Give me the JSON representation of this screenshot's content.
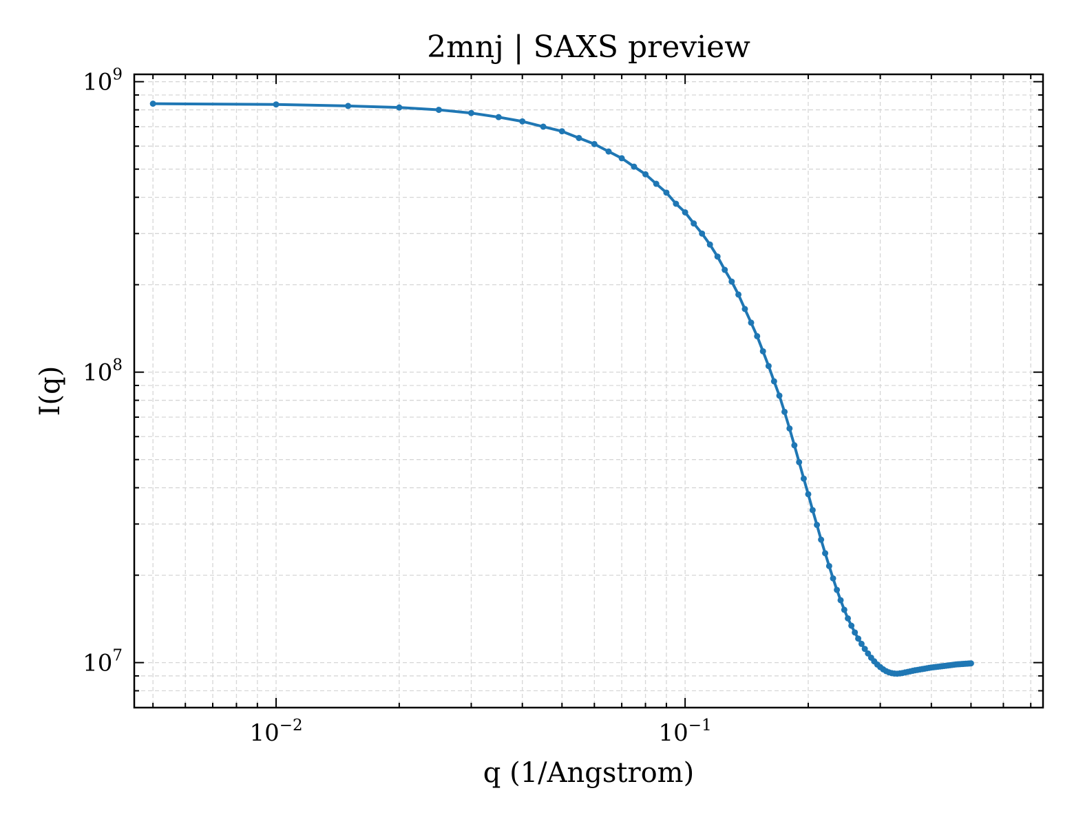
{
  "chart_data": {
    "type": "line",
    "title": "2mnj | SAXS preview",
    "xlabel": "q (1/Angstrom)",
    "ylabel": "I(q)",
    "x_scale": "log",
    "y_scale": "log",
    "xlim": [
      0.0045,
      0.75
    ],
    "ylim": [
      7000000,
      1060000000
    ],
    "grid": true,
    "grid_style": "dashed-major-and-minor",
    "legend": "none",
    "series_color": "#1f77b4",
    "x_ticks": [
      {
        "value": 0.01,
        "base": "10",
        "exp": "−2"
      },
      {
        "value": 0.1,
        "base": "10",
        "exp": "−1"
      }
    ],
    "y_ticks": [
      {
        "value": 10000000,
        "base": "10",
        "exp": "7"
      },
      {
        "value": 100000000,
        "base": "10",
        "exp": "8"
      },
      {
        "value": 1000000000,
        "base": "10",
        "exp": "9"
      }
    ],
    "series": [
      {
        "x": [
          0.005,
          0.01,
          0.015,
          0.02,
          0.025,
          0.03,
          0.035,
          0.04,
          0.045,
          0.05,
          0.055,
          0.06,
          0.065,
          0.07,
          0.075,
          0.08,
          0.085,
          0.09,
          0.095,
          0.1,
          0.105,
          0.11,
          0.115,
          0.12,
          0.125,
          0.13,
          0.135,
          0.14,
          0.145,
          0.15,
          0.155,
          0.16,
          0.165,
          0.17,
          0.175,
          0.18,
          0.185,
          0.19,
          0.195,
          0.2,
          0.205,
          0.21,
          0.215,
          0.22,
          0.225,
          0.23,
          0.235,
          0.24,
          0.245,
          0.25,
          0.255,
          0.26,
          0.265,
          0.27,
          0.275,
          0.28,
          0.285,
          0.29,
          0.295,
          0.3,
          0.305,
          0.31,
          0.315,
          0.32,
          0.325,
          0.33,
          0.335,
          0.34,
          0.345,
          0.35,
          0.355,
          0.36,
          0.365,
          0.37,
          0.375,
          0.38,
          0.385,
          0.39,
          0.395,
          0.4,
          0.405,
          0.41,
          0.415,
          0.42,
          0.425,
          0.43,
          0.435,
          0.44,
          0.445,
          0.45,
          0.455,
          0.46,
          0.465,
          0.47,
          0.475,
          0.48,
          0.485,
          0.49,
          0.495,
          0.5
        ],
        "y": [
          840000000,
          835000000,
          825000000,
          815000000,
          800000000,
          780000000,
          755000000,
          730000000,
          700000000,
          675000000,
          640000000,
          610000000,
          575000000,
          545000000,
          510000000,
          480000000,
          445000000,
          415000000,
          380000000,
          355000000,
          325000000,
          300000000,
          275000000,
          250000000,
          225000000,
          205000000,
          185000000,
          165000000,
          148000000,
          133000000,
          118000000,
          105000000,
          93000000,
          83000000,
          73000000,
          64000000,
          56000000,
          49000000,
          43000000,
          38000000,
          33500000,
          29800000,
          26500000,
          23800000,
          21500000,
          19500000,
          17800000,
          16400000,
          15200000,
          14200000,
          13400000,
          12700000,
          12100000,
          11600000,
          11150000,
          10750000,
          10400000,
          10100000,
          9850000,
          9650000,
          9480000,
          9350000,
          9260000,
          9200000,
          9170000,
          9160000,
          9180000,
          9210000,
          9250000,
          9290000,
          9330000,
          9370000,
          9410000,
          9440000,
          9470000,
          9500000,
          9530000,
          9560000,
          9590000,
          9620000,
          9640000,
          9660000,
          9680000,
          9700000,
          9720000,
          9740000,
          9760000,
          9780000,
          9800000,
          9820000,
          9840000,
          9860000,
          9870000,
          9880000,
          9890000,
          9900000,
          9910000,
          9920000,
          9930000,
          9940000
        ]
      }
    ]
  }
}
